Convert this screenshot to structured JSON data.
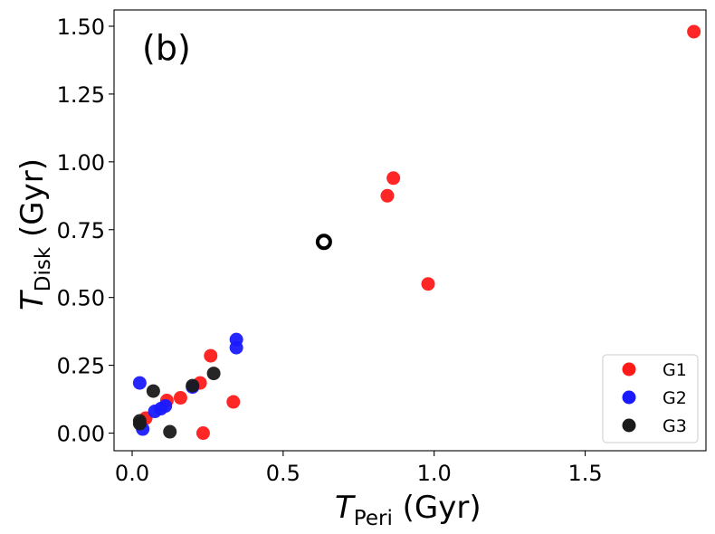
{
  "chart_data": {
    "type": "scatter",
    "panel_label": "(b)",
    "xlabel": {
      "symbol": "T",
      "subscript": "Peri",
      "unit": " (Gyr)"
    },
    "ylabel": {
      "symbol": "T",
      "subscript": "Disk",
      "unit": " (Gyr)"
    },
    "xlim": [
      -0.06,
      1.9
    ],
    "ylim": [
      -0.065,
      1.56
    ],
    "xticks": [
      0.0,
      0.5,
      1.0,
      1.5
    ],
    "xtick_labels": [
      "0.0",
      "0.5",
      "1.0",
      "1.5"
    ],
    "yticks": [
      0.0,
      0.25,
      0.5,
      0.75,
      1.0,
      1.25,
      1.5
    ],
    "ytick_labels": [
      "0.00",
      "0.25",
      "0.50",
      "0.75",
      "1.00",
      "1.25",
      "1.50"
    ],
    "legend_position": "lower-right",
    "series": [
      {
        "name": "G1",
        "color": "#ff1a1a",
        "points": [
          {
            "x": 1.86,
            "y": 1.48
          },
          {
            "x": 0.865,
            "y": 0.94
          },
          {
            "x": 0.845,
            "y": 0.875
          },
          {
            "x": 0.98,
            "y": 0.55
          },
          {
            "x": 0.26,
            "y": 0.285
          },
          {
            "x": 0.225,
            "y": 0.185
          },
          {
            "x": 0.335,
            "y": 0.115
          },
          {
            "x": 0.16,
            "y": 0.13
          },
          {
            "x": 0.115,
            "y": 0.12
          },
          {
            "x": 0.045,
            "y": 0.055
          },
          {
            "x": 0.235,
            "y": 0.0
          }
        ]
      },
      {
        "name": "G2",
        "color": "#1a1aff",
        "points": [
          {
            "x": 0.345,
            "y": 0.345
          },
          {
            "x": 0.345,
            "y": 0.315
          },
          {
            "x": 0.025,
            "y": 0.185
          },
          {
            "x": 0.2,
            "y": 0.17
          },
          {
            "x": 0.11,
            "y": 0.1
          },
          {
            "x": 0.095,
            "y": 0.09
          },
          {
            "x": 0.075,
            "y": 0.08
          },
          {
            "x": 0.035,
            "y": 0.015
          }
        ]
      },
      {
        "name": "G3",
        "color": "#1a1a1a",
        "points": [
          {
            "x": 0.27,
            "y": 0.22
          },
          {
            "x": 0.2,
            "y": 0.175
          },
          {
            "x": 0.07,
            "y": 0.155
          },
          {
            "x": 0.025,
            "y": 0.045
          },
          {
            "x": 0.025,
            "y": 0.035
          },
          {
            "x": 0.125,
            "y": 0.005
          }
        ]
      }
    ],
    "annotations": [
      {
        "type": "open-circle",
        "x": 0.635,
        "y": 0.705,
        "color": "#000000"
      }
    ]
  }
}
